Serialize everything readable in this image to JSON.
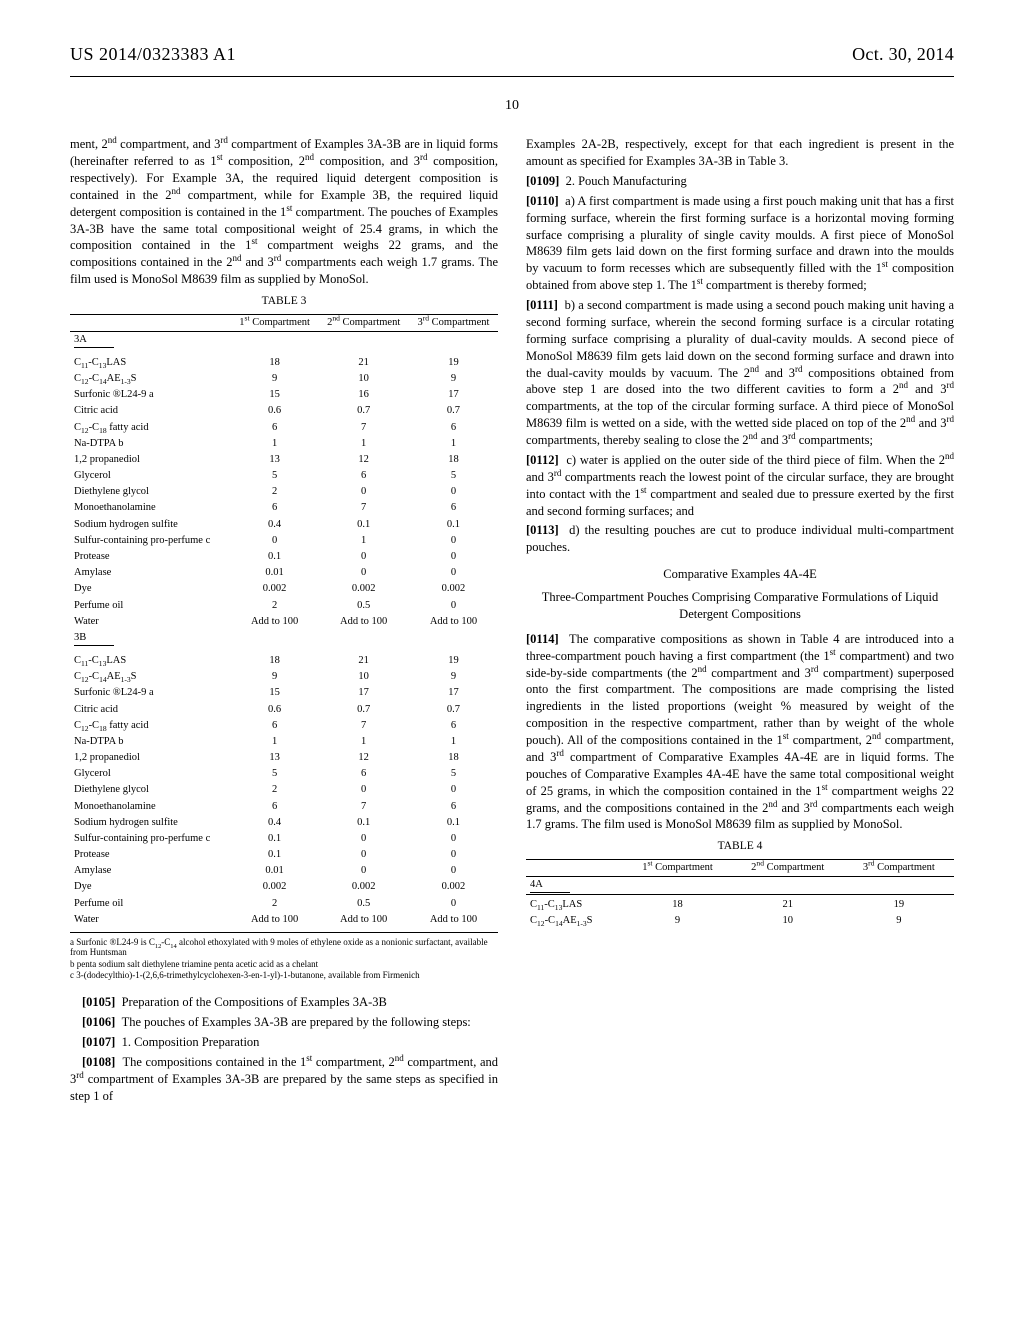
{
  "header": {
    "pubno": "US 2014/0323383 A1",
    "date": "Oct. 30, 2014"
  },
  "page_number": "10",
  "left": {
    "intro": "ment, 2<sup>nd</sup> compartment, and 3<sup>rd</sup> compartment of Examples 3A-3B are in liquid forms (hereinafter referred to as 1<sup>st</sup> composition, 2<sup>nd</sup> composition, and 3<sup>rd</sup> composition, respectively). For Example 3A, the required liquid detergent composition is contained in the 2<sup>nd</sup> compartment, while for Example 3B, the required liquid detergent composition is contained in the 1<sup>st</sup> compartment. The pouches of Examples 3A-3B have the same total compositional weight of 25.4 grams, in which the composition contained in the 1<sup>st</sup> compartment weighs 22 grams, and the compositions contained in the 2<sup>nd</sup> and 3<sup>rd</sup> compartments each weigh 1.7 grams. The film used is MonoSol M8639 film as supplied by MonoSol.",
    "table3": {
      "caption": "TABLE 3",
      "cols": [
        "1<sup>st</sup> Compartment",
        "2<sup>nd</sup> Compartment",
        "3<sup>rd</sup> Compartment"
      ],
      "groups": [
        {
          "title": "3A",
          "rows": [
            [
              "C<sub>11</sub>-C<sub>13</sub>LAS",
              "18",
              "21",
              "19"
            ],
            [
              "C<sub>12</sub>-C<sub>14</sub>AE<sub>1-3</sub>S",
              "9",
              "10",
              "9"
            ],
            [
              "Surfonic ®L24-9 a",
              "15",
              "16",
              "17"
            ],
            [
              "Citric acid",
              "0.6",
              "0.7",
              "0.7"
            ],
            [
              "C<sub>12</sub>-C<sub>18</sub> fatty acid",
              "6",
              "7",
              "6"
            ],
            [
              "Na-DTPA b",
              "1",
              "1",
              "1"
            ],
            [
              "1,2 propanediol",
              "13",
              "12",
              "18"
            ],
            [
              "Glycerol",
              "5",
              "6",
              "5"
            ],
            [
              "Diethylene glycol",
              "2",
              "0",
              "0"
            ],
            [
              "Monoethanolamine",
              "6",
              "7",
              "6"
            ],
            [
              "Sodium hydrogen sulfite",
              "0.4",
              "0.1",
              "0.1"
            ],
            [
              "Sulfur-containing pro-perfume c",
              "0",
              "1",
              "0"
            ],
            [
              "Protease",
              "0.1",
              "0",
              "0"
            ],
            [
              "Amylase",
              "0.01",
              "0",
              "0"
            ],
            [
              "Dye",
              "0.002",
              "0.002",
              "0.002"
            ],
            [
              "Perfume oil",
              "2",
              "0.5",
              "0"
            ],
            [
              "Water",
              "Add to 100",
              "Add to 100",
              "Add to 100"
            ]
          ]
        },
        {
          "title": "3B",
          "rows": [
            [
              "C<sub>11</sub>-C<sub>13</sub>LAS",
              "18",
              "21",
              "19"
            ],
            [
              "C<sub>12</sub>-C<sub>14</sub>AE<sub>1-3</sub>S",
              "9",
              "10",
              "9"
            ],
            [
              "Surfonic ®L24-9 a",
              "15",
              "17",
              "17"
            ],
            [
              "Citric acid",
              "0.6",
              "0.7",
              "0.7"
            ],
            [
              "C<sub>12</sub>-C<sub>18</sub> fatty acid",
              "6",
              "7",
              "6"
            ],
            [
              "Na-DTPA b",
              "1",
              "1",
              "1"
            ],
            [
              "1,2 propanediol",
              "13",
              "12",
              "18"
            ],
            [
              "Glycerol",
              "5",
              "6",
              "5"
            ],
            [
              "Diethylene glycol",
              "2",
              "0",
              "0"
            ],
            [
              "Monoethanolamine",
              "6",
              "7",
              "6"
            ],
            [
              "Sodium hydrogen sulfite",
              "0.4",
              "0.1",
              "0.1"
            ],
            [
              "Sulfur-containing pro-perfume c",
              "0.1",
              "0",
              "0"
            ],
            [
              "Protease",
              "0.1",
              "0",
              "0"
            ],
            [
              "Amylase",
              "0.01",
              "0",
              "0"
            ],
            [
              "Dye",
              "0.002",
              "0.002",
              "0.002"
            ],
            [
              "Perfume oil",
              "2",
              "0.5",
              "0"
            ],
            [
              "Water",
              "Add to 100",
              "Add to 100",
              "Add to 100"
            ]
          ]
        }
      ],
      "footnotes": [
        "a Surfonic ®L24-9 is C<sub>12</sub>-C<sub>14</sub> alcohol ethoxylated with 9 moles of ethylene oxide as a nonionic surfactant, available from Huntsman",
        "b penta sodium salt diethylene triamine penta acetic acid as a chelant",
        "c 3-(dodecylthio)-1-(2,6,6-trimethylcyclohexen-3-en-1-yl)-1-butanone, available from Firmenich"
      ]
    },
    "p0105": "Preparation of the Compositions of Examples 3A-3B",
    "p0106": "The pouches of Examples 3A-3B are prepared by the following steps:",
    "p0107": "1. Composition Preparation",
    "p0108": "The compositions contained in the 1<sup>st</sup> compartment, 2<sup>nd</sup> compartment, and 3<sup>rd</sup> compartment of Examples 3A-3B are prepared by the same steps as specified in step 1 of"
  },
  "right": {
    "cont": "Examples 2A-2B, respectively, except for that each ingredient is present in the amount as specified for Examples 3A-3B in Table 3.",
    "p0109": "2. Pouch Manufacturing",
    "p0110": "a) A first compartment is made using a first pouch making unit that has a first forming surface, wherein the first forming surface is a horizontal moving forming surface comprising a plurality of single cavity moulds. A first piece of MonoSol M8639 film gets laid down on the first forming surface and drawn into the moulds by vacuum to form recesses which are subsequently filled with the 1<sup>st</sup> composition obtained from above step 1. The 1<sup>st</sup> compartment is thereby formed;",
    "p0111": "b) a second compartment is made using a second pouch making unit having a second forming surface, wherein the second forming surface is a circular rotating forming surface comprising a plurality of dual-cavity moulds. A second piece of MonoSol M8639 film gets laid down on the second forming surface and drawn into the dual-cavity moulds by vacuum. The 2<sup>nd</sup> and 3<sup>rd</sup> compositions obtained from above step 1 are dosed into the two different cavities to form a 2<sup>nd</sup> and 3<sup>rd</sup> compartments, at the top of the circular forming surface. A third piece of MonoSol M8639 film is wetted on a side, with the wetted side placed on top of the 2<sup>nd</sup> and 3<sup>rd</sup> compartments, thereby sealing to close the 2<sup>nd</sup> and 3<sup>rd</sup> compartments;",
    "p0112": "c) water is applied on the outer side of the third piece of film. When the 2<sup>nd</sup> and 3<sup>rd</sup> compartments reach the lowest point of the circular surface, they are brought into contact with the 1<sup>st</sup> compartment and sealed due to pressure exerted by the first and second forming surfaces; and",
    "p0113": "d) the resulting pouches are cut to produce individual multi-compartment pouches.",
    "section": "Comparative Examples 4A-4E",
    "subhead": "Three-Compartment Pouches Comprising Comparative Formulations of Liquid Detergent Compositions",
    "p0114": "The comparative compositions as shown in Table 4 are introduced into a three-compartment pouch having a first compartment (the 1<sup>st</sup> compartment) and two side-by-side compartments (the 2<sup>nd</sup> compartment and 3<sup>rd</sup> compartment) superposed onto the first compartment. The compositions are made comprising the listed ingredients in the listed proportions (weight % measured by weight of the composition in the respective compartment, rather than by weight of the whole pouch). All of the compositions contained in the 1<sup>st</sup> compartment, 2<sup>nd</sup> compartment, and 3<sup>rd</sup> compartment of Comparative Examples 4A-4E are in liquid forms. The pouches of Comparative Examples 4A-4E have the same total compositional weight of 25 grams, in which the composition contained in the 1<sup>st</sup> compartment weighs 22 grams, and the compositions contained in the 2<sup>nd</sup> and 3<sup>rd</sup> compartments each weigh 1.7 grams. The film used is MonoSol M8639 film as supplied by MonoSol.",
    "table4": {
      "caption": "TABLE 4",
      "cols": [
        "1<sup>st</sup> Compartment",
        "2<sup>nd</sup> Compartment",
        "3<sup>rd</sup> Compartment"
      ],
      "group_title": "4A",
      "rows": [
        [
          "C<sub>11</sub>-C<sub>13</sub>LAS",
          "18",
          "21",
          "19"
        ],
        [
          "C<sub>12</sub>-C<sub>14</sub>AE<sub>1-3</sub>S",
          "9",
          "10",
          "9"
        ]
      ]
    }
  }
}
